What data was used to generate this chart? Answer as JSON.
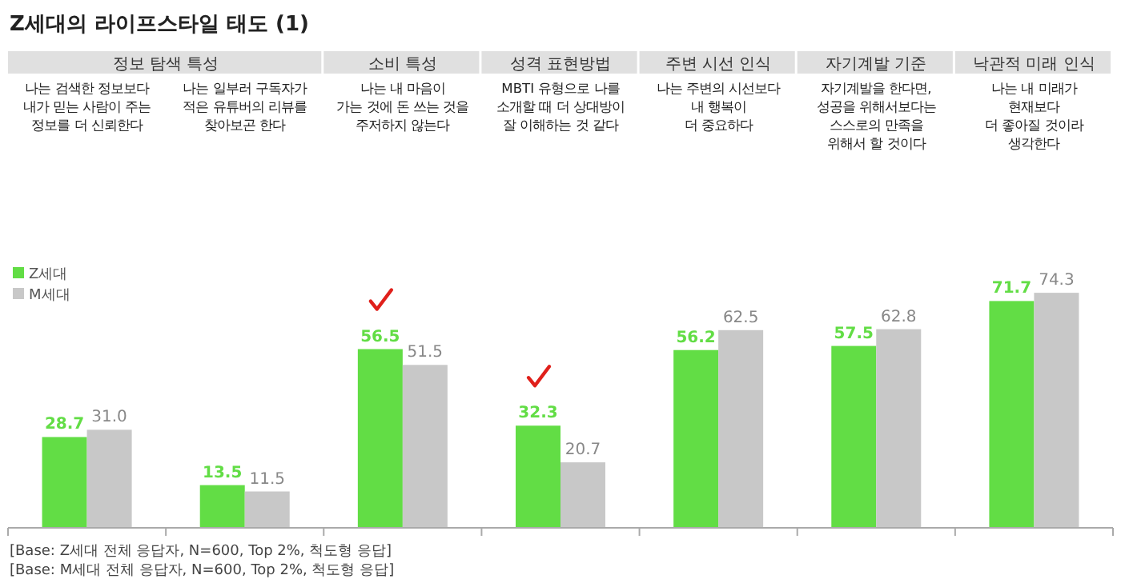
{
  "chart_data": {
    "type": "bar",
    "title": "Z세대의 라이프스타일 태도 (1)",
    "categories": [
      "나는 검색한 정보보다\n내가 믿는 사람이 주는\n정보를 더 신뢰한다",
      "나는 일부러 구독자가\n적은 유튜버의 리뷰를\n찾아보곤 한다",
      "나는 내 마음이\n가는 것에 돈 쓰는 것을\n주저하지 않는다",
      "MBTI 유형으로 나를\n소개할 때 더 상대방이\n잘 이해하는 것 같다",
      "나는 주변의 시선보다\n내 행복이\n더 중요하다",
      "자기계발을 한다면,\n성공을 위해서보다는\n스스로의 만족을\n위해서 할 것이다",
      "나는 내 미래가\n현재보다\n더 좋아질 것이라\n생각한다"
    ],
    "series": [
      {
        "name": "Z세대",
        "color": "#62dd45",
        "values": [
          28.7,
          13.5,
          56.5,
          32.3,
          56.2,
          57.5,
          71.7
        ],
        "value_labels": [
          "28.7",
          "13.5",
          "56.5",
          "32.3",
          "56.2",
          "57.5",
          "71.7"
        ]
      },
      {
        "name": "M세대",
        "color": "#c8c8c8",
        "values": [
          31.0,
          11.5,
          51.5,
          20.7,
          62.5,
          62.8,
          74.3
        ],
        "value_labels": [
          "31.0",
          "11.5",
          "51.5",
          "20.7",
          "62.5",
          "62.8",
          "74.3"
        ]
      }
    ],
    "legend": "top left",
    "tick_labels": "x",
    "annotations": [
      "정보 탐색 특성",
      "소비 특성",
      "성격 표현방법",
      "주변 시선 인식",
      "자기계발 기준",
      "낙관적 미래 인식",
      "[Base: Z세대 전체 응답자, N=600, Top 2%, 척도형 응답]",
      "[Base: M세대 전체 응답자, N=600, Top 2%, 척도형 응답]"
    ]
  }
}
